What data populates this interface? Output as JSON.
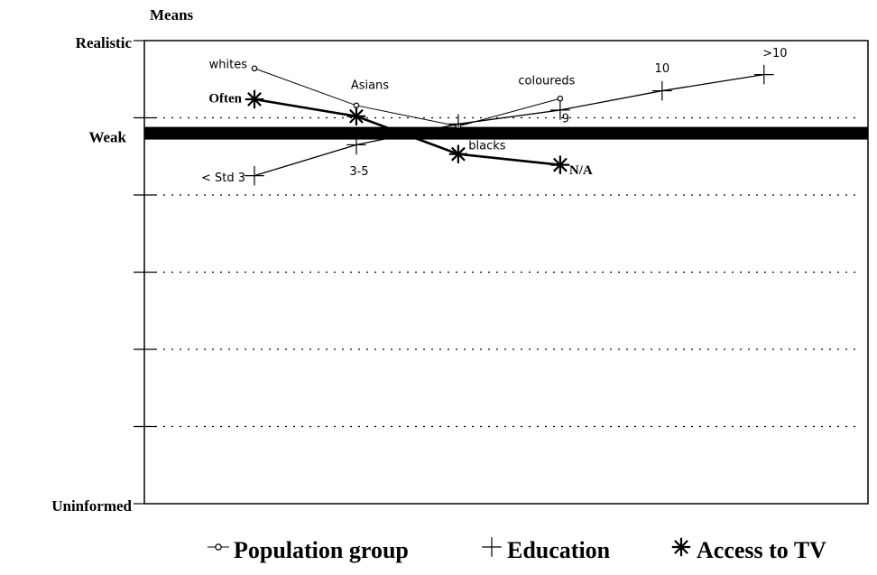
{
  "chart_data": {
    "type": "line",
    "y_axis_title": "Means",
    "ylim": [
      0,
      6
    ],
    "xlim": [
      -1.08,
      6.02
    ],
    "yticks": [
      1,
      2,
      3,
      4,
      5
    ],
    "ytick_labels": [
      {
        "value": 6,
        "label": "Realistic"
      },
      {
        "value": 4.8,
        "label": "Weak"
      },
      {
        "value": 0,
        "label": "Uninformed"
      }
    ],
    "grid": true,
    "legend": "bottom",
    "series": [
      {
        "name": "Population group",
        "color": "#000000",
        "marker": "circle",
        "x": [
          0,
          1,
          2,
          3
        ],
        "values": [
          5.64,
          5.16,
          4.89,
          5.25
        ],
        "labels": [
          "whites",
          "Asians",
          "blacks",
          "coloureds"
        ]
      },
      {
        "name": "Education",
        "color": "#000000",
        "marker": "plus",
        "x": [
          0,
          1,
          2,
          3,
          4,
          5
        ],
        "values": [
          4.25,
          4.65,
          4.92,
          5.1,
          5.35,
          5.56
        ],
        "labels": [
          "< Std 3",
          "3-5",
          null,
          "9",
          "10",
          ">10"
        ]
      },
      {
        "name": "Access to TV",
        "color": "#000000",
        "marker": "asterisk",
        "x": [
          0,
          1,
          2,
          3
        ],
        "values": [
          5.24,
          5.02,
          4.53,
          4.39
        ],
        "labels": [
          "Often",
          null,
          null,
          "N/A"
        ]
      }
    ]
  }
}
